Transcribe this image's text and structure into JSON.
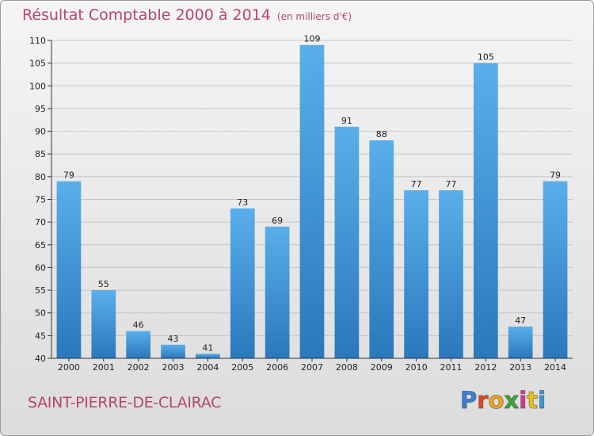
{
  "chart_data": {
    "type": "bar",
    "title": "Résultat Comptable 2000 à 2014",
    "subtitle": "(en milliers d'€)",
    "categories": [
      "2000",
      "2001",
      "2002",
      "2003",
      "2004",
      "2005",
      "2006",
      "2007",
      "2008",
      "2009",
      "2010",
      "2011",
      "2012",
      "2013",
      "2014"
    ],
    "values": [
      79,
      55,
      46,
      43,
      41,
      73,
      69,
      109,
      91,
      88,
      77,
      77,
      105,
      47,
      79
    ],
    "ylim": [
      40,
      110
    ],
    "yticks": [
      40,
      45,
      50,
      55,
      60,
      65,
      70,
      75,
      80,
      85,
      90,
      95,
      100,
      105,
      110
    ],
    "xlabel": "",
    "ylabel": "",
    "grid": true,
    "bar_color": "#4f9fe0"
  },
  "footer": {
    "town": "SAINT-PIERRE-DE-CLAIRAC",
    "logo_letters": [
      "P",
      "r",
      "o",
      "x",
      "i",
      "t",
      "i"
    ],
    "logo_colors": [
      "#3a7fd0",
      "#e04a2a",
      "#f2a31c",
      "#3aa83a",
      "#d63a8e",
      "#e8c21c",
      "#3a9ad9"
    ]
  }
}
